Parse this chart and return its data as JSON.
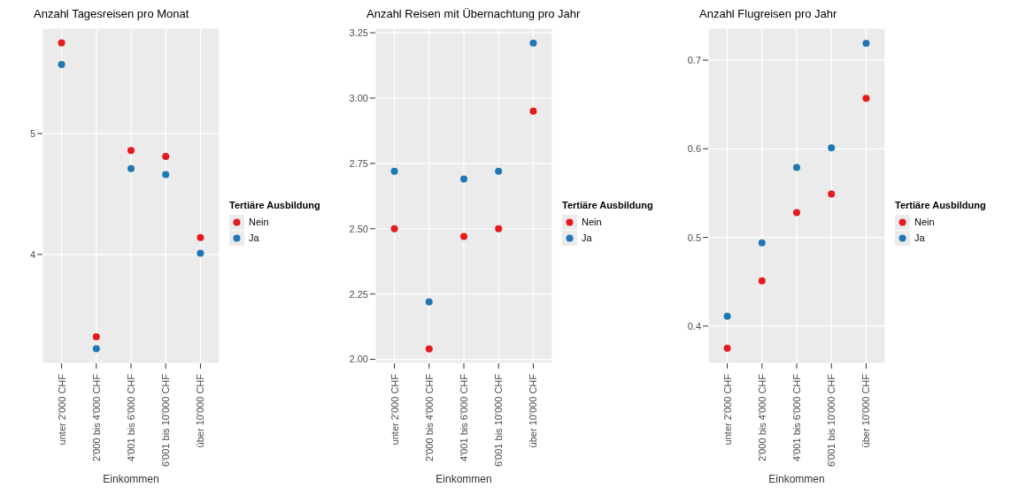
{
  "chart_data": [
    {
      "type": "scatter",
      "title": "Anzahl Tagesreisen pro Monat",
      "xlabel": "Einkommen",
      "legend_title": "Tertiäre Ausbildung",
      "legend": "right",
      "grid": true,
      "marker": "circle",
      "categories": [
        "unter 2'000 CHF",
        "2'000 bis 4'000 CHF",
        "4'001 bis 6'000 CHF",
        "6'001 bis 10'000 CHF",
        "über 10'000 CHF"
      ],
      "ylim": [
        3.1,
        5.87
      ],
      "yticks": [
        4,
        5
      ],
      "series": [
        {
          "name": "Nein",
          "color": "#e41a1c",
          "values": [
            5.75,
            3.32,
            4.86,
            4.81,
            4.14
          ]
        },
        {
          "name": "Ja",
          "color": "#1f78b4",
          "values": [
            5.57,
            3.22,
            4.71,
            4.66,
            4.01
          ]
        }
      ]
    },
    {
      "type": "scatter",
      "title": "Anzahl Reisen mit Übernachtung pro Jahr",
      "xlabel": "Einkommen",
      "legend_title": "Tertiäre Ausbildung",
      "legend": "right",
      "grid": true,
      "marker": "circle",
      "categories": [
        "unter 2'000 CHF",
        "2'000 bis 4'000 CHF",
        "4'001 bis 6'000 CHF",
        "6'001 bis 10'000 CHF",
        "über 10'000 CHF"
      ],
      "ylim": [
        1.985,
        3.267
      ],
      "yticks": [
        {
          "value": 2,
          "label": "2.00"
        },
        {
          "value": 2.25,
          "label": "2.25"
        },
        {
          "value": 2.5,
          "label": "2.50"
        },
        {
          "value": 2.75,
          "label": "2.75"
        },
        {
          "value": 3,
          "label": "3.00"
        },
        {
          "value": 3.25,
          "label": "3.25"
        }
      ],
      "series": [
        {
          "name": "Nein",
          "color": "#e41a1c",
          "values": [
            2.5,
            2.04,
            2.47,
            2.5,
            2.95
          ]
        },
        {
          "name": "Ja",
          "color": "#1f78b4",
          "values": [
            2.72,
            2.22,
            2.69,
            2.72,
            3.21
          ]
        }
      ]
    },
    {
      "type": "scatter",
      "title": "Anzahl Flugreisen pro Jahr",
      "xlabel": "Einkommen",
      "legend_title": "Tertiäre Ausbildung",
      "legend": "right",
      "grid": true,
      "marker": "circle",
      "categories": [
        "unter 2'000 CHF",
        "2'000 bis 4'000 CHF",
        "4'001 bis 6'000 CHF",
        "6'001 bis 10'000 CHF",
        "über 10'000 CHF"
      ],
      "ylim": [
        0.358,
        0.736
      ],
      "yticks": [
        0.4,
        0.5,
        0.6,
        0.7
      ],
      "series": [
        {
          "name": "Nein",
          "color": "#e41a1c",
          "values": [
            0.375,
            0.451,
            0.528,
            0.549,
            0.657
          ]
        },
        {
          "name": "Ja",
          "color": "#1f78b4",
          "values": [
            0.411,
            0.494,
            0.579,
            0.601,
            0.719
          ]
        }
      ]
    }
  ]
}
